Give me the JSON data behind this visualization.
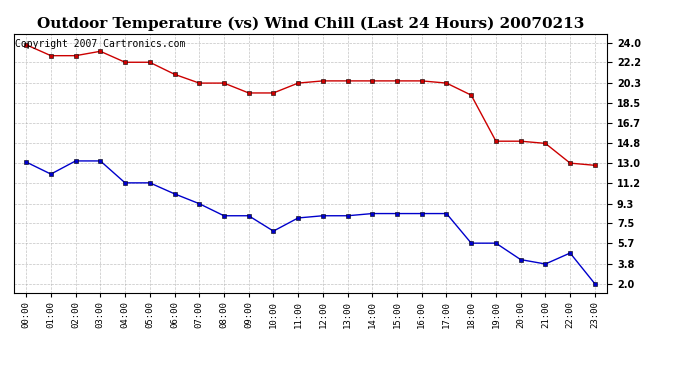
{
  "title": "Outdoor Temperature (vs) Wind Chill (Last 24 Hours) 20070213",
  "copyright": "Copyright 2007 Cartronics.com",
  "x_labels": [
    "00:00",
    "01:00",
    "02:00",
    "03:00",
    "04:00",
    "05:00",
    "06:00",
    "07:00",
    "08:00",
    "09:00",
    "10:00",
    "11:00",
    "12:00",
    "13:00",
    "14:00",
    "15:00",
    "16:00",
    "17:00",
    "18:00",
    "19:00",
    "20:00",
    "21:00",
    "22:00",
    "23:00"
  ],
  "temp_data": [
    23.8,
    22.8,
    22.8,
    23.2,
    22.2,
    22.2,
    21.1,
    20.3,
    20.3,
    19.4,
    19.4,
    20.3,
    20.5,
    20.5,
    20.5,
    20.5,
    20.5,
    20.3,
    19.2,
    15.0,
    15.0,
    14.8,
    13.0,
    12.8
  ],
  "wind_chill_data": [
    13.1,
    12.0,
    13.2,
    13.2,
    11.2,
    11.2,
    10.2,
    9.3,
    8.2,
    8.2,
    6.8,
    8.0,
    8.2,
    8.2,
    8.4,
    8.4,
    8.4,
    8.4,
    5.7,
    5.7,
    4.2,
    3.8,
    4.8,
    2.0
  ],
  "temp_color": "#cc0000",
  "wind_color": "#0000cc",
  "yticks": [
    2.0,
    3.8,
    5.7,
    7.5,
    9.3,
    11.2,
    13.0,
    14.8,
    16.7,
    18.5,
    20.3,
    22.2,
    24.0
  ],
  "ymin": 1.2,
  "ymax": 24.8,
  "bg_color": "#ffffff",
  "grid_color": "#aaaaaa",
  "title_fontsize": 11,
  "copyright_fontsize": 7
}
